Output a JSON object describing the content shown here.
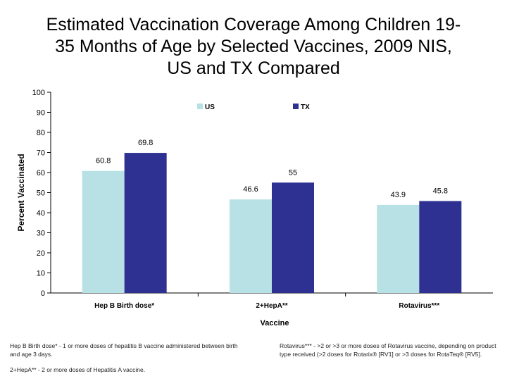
{
  "title_lines": [
    "Estimated Vaccination Coverage Among Children 19-",
    "35 Months of Age by Selected Vaccines, 2009 NIS,",
    "US and TX Compared"
  ],
  "chart_data": {
    "type": "bar",
    "categories": [
      "Hep B Birth dose*",
      "2+HepA**",
      "Rotavirus***"
    ],
    "series": [
      {
        "name": "US",
        "values": [
          60.8,
          46.6,
          43.9
        ],
        "labels": [
          "60.8",
          "46.6",
          "43.9"
        ],
        "color": "#b7e1e4"
      },
      {
        "name": "TX",
        "values": [
          69.8,
          55,
          45.8
        ],
        "labels": [
          "69.8",
          "55",
          "45.8"
        ],
        "color": "#2e3192"
      }
    ],
    "xlabel": "Vaccine",
    "ylabel": "Percent Vaccinated",
    "ylim": [
      0,
      100
    ],
    "yticks": [
      0,
      10,
      20,
      30,
      40,
      50,
      60,
      70,
      80,
      90,
      100
    ],
    "grid": false,
    "legend": "top-center"
  },
  "footnotes": {
    "left": [
      "Hep B Birth dose* - 1 or more doses of hepatitis B vaccine administered between birth and age 3 days.",
      "2+HepA** - 2 or more doses of Hepatitis A vaccine."
    ],
    "right": [
      "Rotavirus*** - >2 or >3 or more doses of Rotavirus vaccine, depending on product type received (>2 doses for Rotarix® [RV1] or >3 doses for RotaTeq® [RV5]."
    ]
  }
}
